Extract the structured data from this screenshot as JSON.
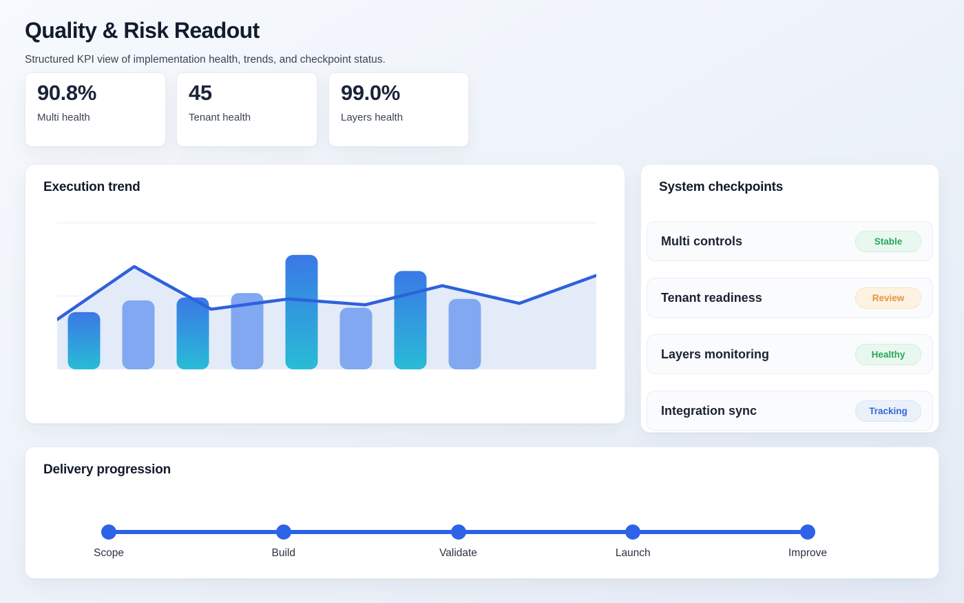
{
  "header": {
    "title": "Quality & Risk Readout",
    "subtitle": "Structured KPI view of implementation health, trends, and checkpoint status."
  },
  "kpis": [
    {
      "value": "90.8%",
      "label": "Multi health"
    },
    {
      "value": "45",
      "label": "Tenant health"
    },
    {
      "value": "99.0%",
      "label": "Layers health"
    }
  ],
  "chart_data": {
    "type": "combo_bar_line_area",
    "title": "Execution trend",
    "subtitle_note": "no axis tick labels, no legend visible",
    "ylim": [
      0,
      100
    ],
    "grid": "3 light horizontal gridlines (top, middle, baseline)",
    "bars": {
      "count": 8,
      "values": [
        39,
        47,
        49,
        52,
        78,
        42,
        67,
        48
      ],
      "style": "odd bars blue-to-teal vertical gradient, even bars flat periwinkle, fully rounded corners"
    },
    "line": {
      "count": 8,
      "values": [
        34,
        70,
        41,
        48,
        44,
        57,
        45,
        64
      ],
      "style": "royal blue polyline spanning full plot width with light blue area fill beneath"
    }
  },
  "trend_section": {
    "title": "Execution trend"
  },
  "checkpoints": {
    "title": "System checkpoints",
    "items": [
      {
        "label": "Multi controls",
        "status": "Stable",
        "tone": "green"
      },
      {
        "label": "Tenant readiness",
        "status": "Review",
        "tone": "amber"
      },
      {
        "label": "Layers monitoring",
        "status": "Healthy",
        "tone": "green"
      },
      {
        "label": "Integration sync",
        "status": "Tracking",
        "tone": "blue"
      }
    ]
  },
  "delivery": {
    "title": "Delivery progression",
    "milestones": [
      "Scope",
      "Build",
      "Validate",
      "Launch",
      "Improve"
    ]
  },
  "colors": {
    "accent_line_blue": "#2e61dc",
    "timeline_blue": "#2b61e6",
    "bar_gradient_top": "#3b78e6",
    "bar_gradient_bottom": "#28bcd6",
    "bar_light": "#81a8f0",
    "area_fill": "#e4ebf8",
    "gridline": "#ebedf2",
    "status_green": "#27a55b",
    "status_amber": "#e8913d",
    "status_blue": "#3465d9",
    "text_dark": "#131c2e",
    "card_bg": "#ffffff",
    "page_bg_start": "#f6f9fd",
    "page_bg_end": "#e4ebf5"
  }
}
